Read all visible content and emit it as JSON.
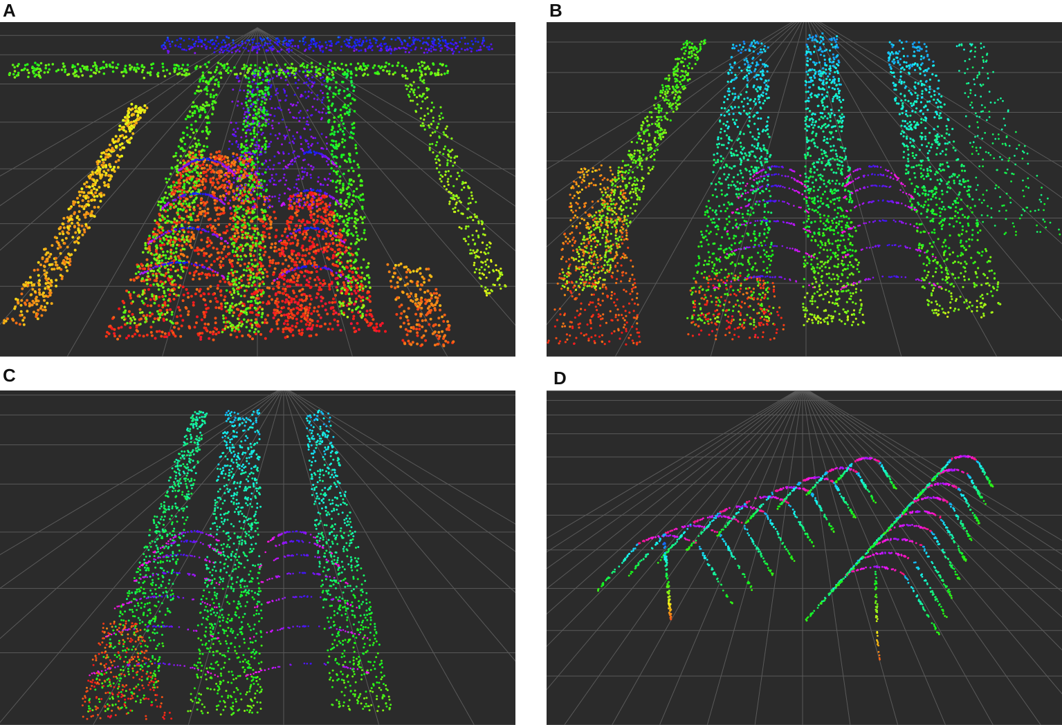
{
  "panels": [
    {
      "label": "A"
    },
    {
      "label": "B"
    },
    {
      "label": "C"
    },
    {
      "label": "D"
    }
  ]
}
